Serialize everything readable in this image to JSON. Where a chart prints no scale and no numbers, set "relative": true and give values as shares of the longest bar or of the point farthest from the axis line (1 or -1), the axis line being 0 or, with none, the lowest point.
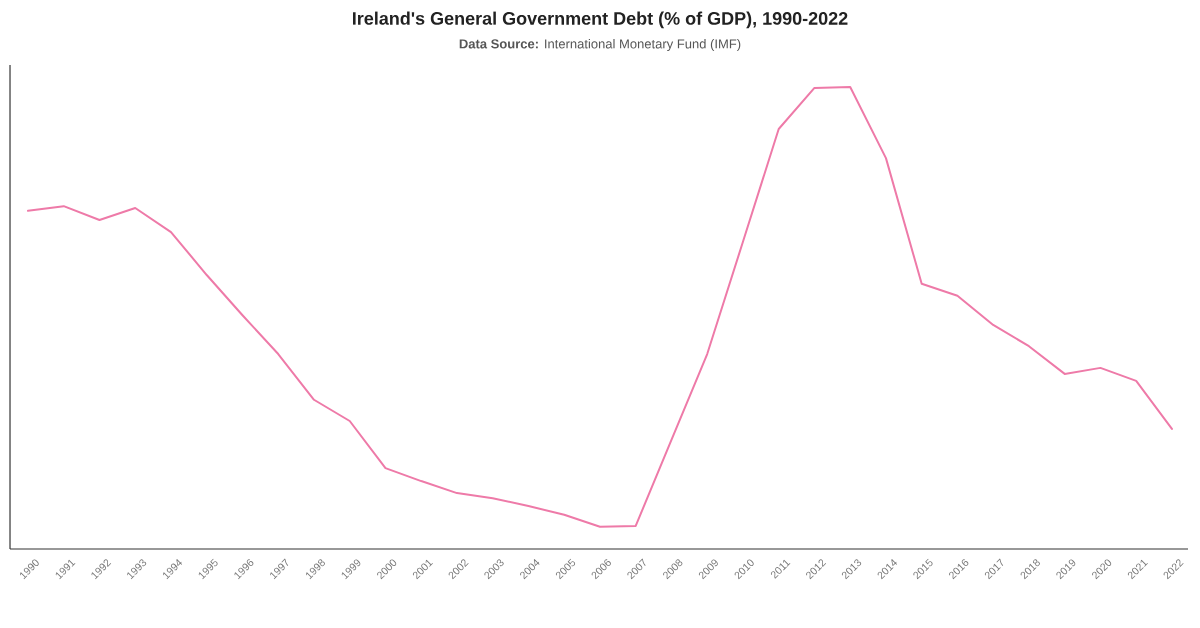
{
  "chart_data": {
    "type": "line",
    "title": "Ireland's General Government Debt (% of GDP), 1990-2022",
    "subtitle": "**Data Source:** International Monetary Fund (IMF)",
    "categories": [
      "1990",
      "1991",
      "1992",
      "1993",
      "1994",
      "1995",
      "1996",
      "1997",
      "1998",
      "1999",
      "2000",
      "2001",
      "2002",
      "2003",
      "2004",
      "2005",
      "2006",
      "2007",
      "2008",
      "2009",
      "2010",
      "2011",
      "2012",
      "2013",
      "2014",
      "2015",
      "2016",
      "2017",
      "2018",
      "2019",
      "2020",
      "2021",
      "2022"
    ],
    "values": [
      0.732,
      0.742,
      0.712,
      0.738,
      0.686,
      0.593,
      0.506,
      0.422,
      0.323,
      0.277,
      0.175,
      0.147,
      0.121,
      0.11,
      0.093,
      0.074,
      0.048,
      0.05,
      0.236,
      0.422,
      0.665,
      0.909,
      0.998,
      1,
      0.846,
      0.574,
      0.548,
      0.485,
      0.439,
      0.379,
      0.392,
      0.364,
      0.26
    ],
    "color": "#ee7aa8",
    "relative": true,
    "marker": "none",
    "line_style": "solid"
  }
}
